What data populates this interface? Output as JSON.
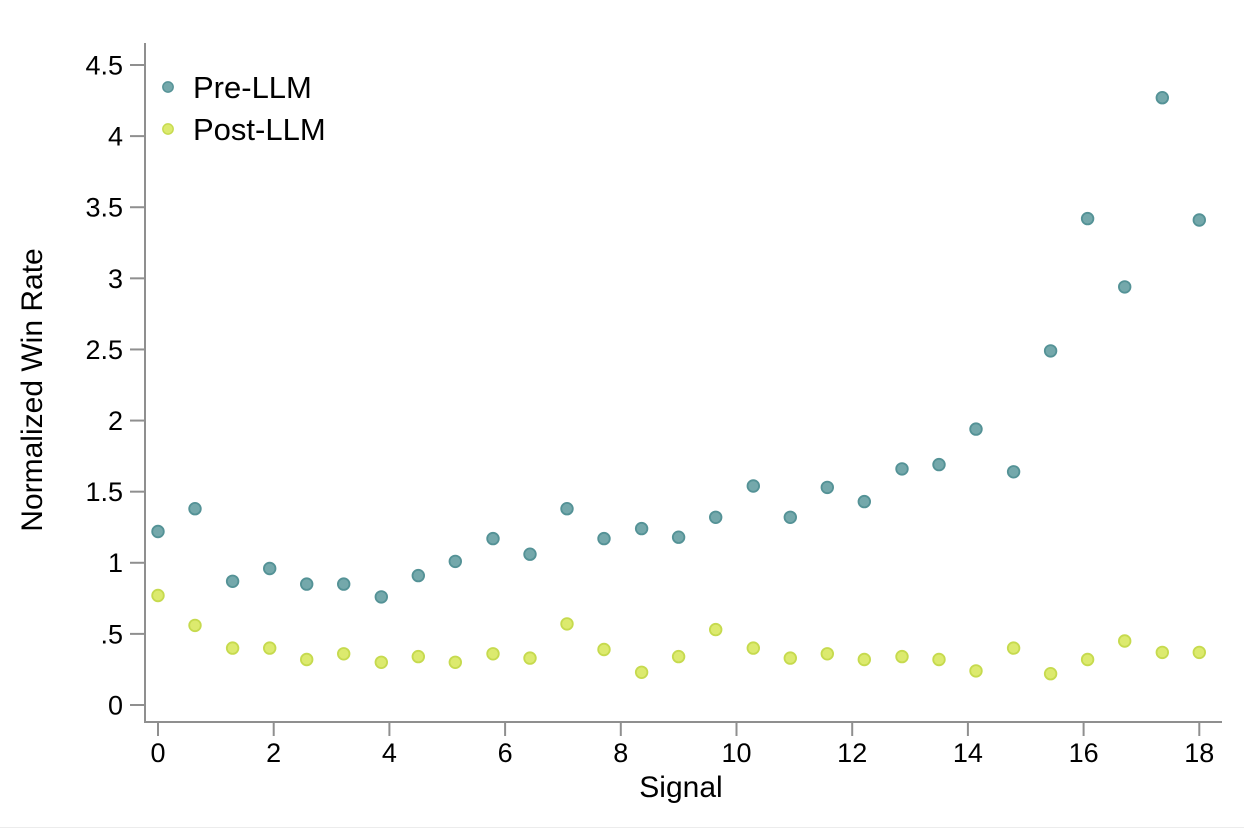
{
  "page": {
    "background": "#ffffff"
  },
  "chart_data": {
    "type": "scatter",
    "title": "",
    "xlabel": "Signal",
    "ylabel": "Normalized Win Rate",
    "xlim": [
      -0.3,
      18.4
    ],
    "ylim": [
      -0.12,
      4.65
    ],
    "grid": false,
    "legend_position": "top-left",
    "axis_color": "#8f8f8f",
    "text_color": "#000000",
    "x_tick_values": [
      0,
      2,
      4,
      6,
      8,
      10,
      12,
      14,
      16,
      18
    ],
    "x_tick_labels": [
      "0",
      "2",
      "4",
      "6",
      "8",
      "10",
      "12",
      "14",
      "16",
      "18"
    ],
    "y_tick_values": [
      0,
      0.5,
      1,
      1.5,
      2,
      2.5,
      3,
      3.5,
      4,
      4.5
    ],
    "y_tick_labels": [
      "0",
      ".5",
      "1",
      "1.5",
      "2",
      "2.5",
      "3",
      "3.5",
      "4",
      "4.5"
    ],
    "x": [
      0,
      0.64,
      1.29,
      1.93,
      2.57,
      3.21,
      3.86,
      4.5,
      5.14,
      5.79,
      6.43,
      7.07,
      7.71,
      8.36,
      9,
      9.64,
      10.29,
      10.93,
      11.57,
      12.21,
      12.86,
      13.5,
      14.14,
      14.79,
      15.43,
      16.07,
      16.71,
      17.36,
      18
    ],
    "series": [
      {
        "name": "Pre-LLM",
        "color": "#74a8ab",
        "edge_color": "#549296",
        "values": [
          1.22,
          1.38,
          0.87,
          0.96,
          0.85,
          0.85,
          0.76,
          0.91,
          1.01,
          1.17,
          1.06,
          1.38,
          1.17,
          1.24,
          1.18,
          1.32,
          1.54,
          1.32,
          1.53,
          1.43,
          1.66,
          1.69,
          1.94,
          1.64,
          2.49,
          3.42,
          2.94,
          4.27,
          3.41
        ]
      },
      {
        "name": "Post-LLM",
        "color": "#dcea6e",
        "edge_color": "#c6da4e",
        "values": [
          0.77,
          0.56,
          0.4,
          0.4,
          0.32,
          0.36,
          0.3,
          0.34,
          0.3,
          0.36,
          0.33,
          0.57,
          0.39,
          0.23,
          0.34,
          0.53,
          0.4,
          0.33,
          0.36,
          0.32,
          0.34,
          0.32,
          0.24,
          0.4,
          0.22,
          0.32,
          0.45,
          0.37,
          0.37
        ]
      }
    ]
  }
}
